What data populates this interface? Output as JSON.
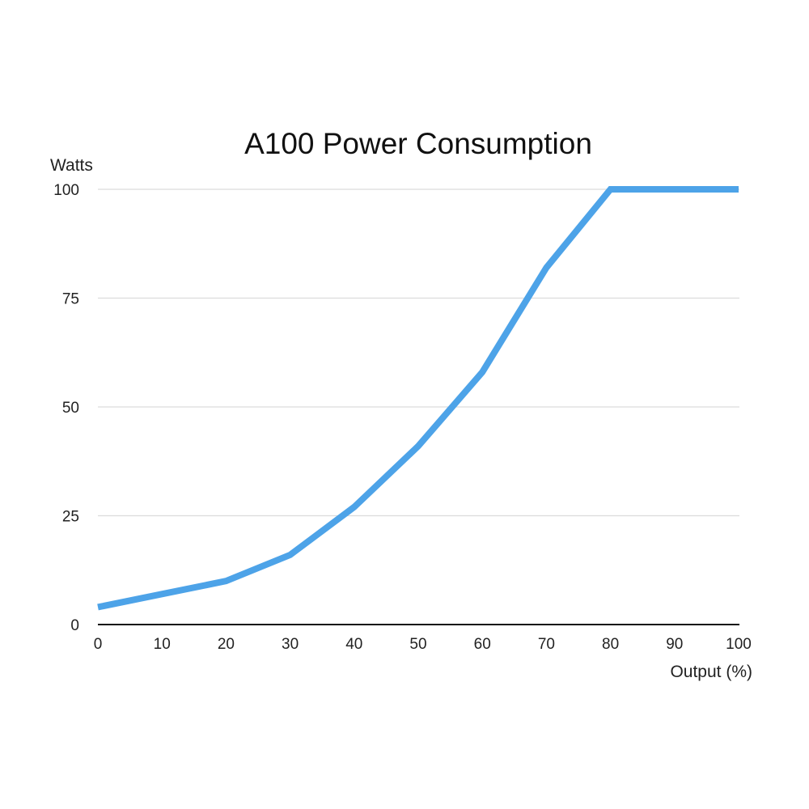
{
  "chart_data": {
    "type": "line",
    "title": "A100 Power Consumption",
    "xlabel": "Output (%)",
    "ylabel": "Watts",
    "x": [
      0,
      10,
      20,
      30,
      40,
      50,
      60,
      70,
      80,
      90,
      100
    ],
    "series": [
      {
        "values": [
          4,
          7,
          10,
          16,
          27,
          41,
          58,
          82,
          100,
          100,
          100
        ],
        "color": "#4da3e8"
      }
    ],
    "xlim": [
      0,
      100
    ],
    "ylim": [
      0,
      100
    ],
    "xticks": [
      "0",
      "10",
      "20",
      "30",
      "40",
      "50",
      "60",
      "70",
      "80",
      "90",
      "100"
    ],
    "yticks": [
      "0",
      "25",
      "50",
      "75",
      "100"
    ],
    "grid": "horizontal",
    "legend": "none"
  }
}
